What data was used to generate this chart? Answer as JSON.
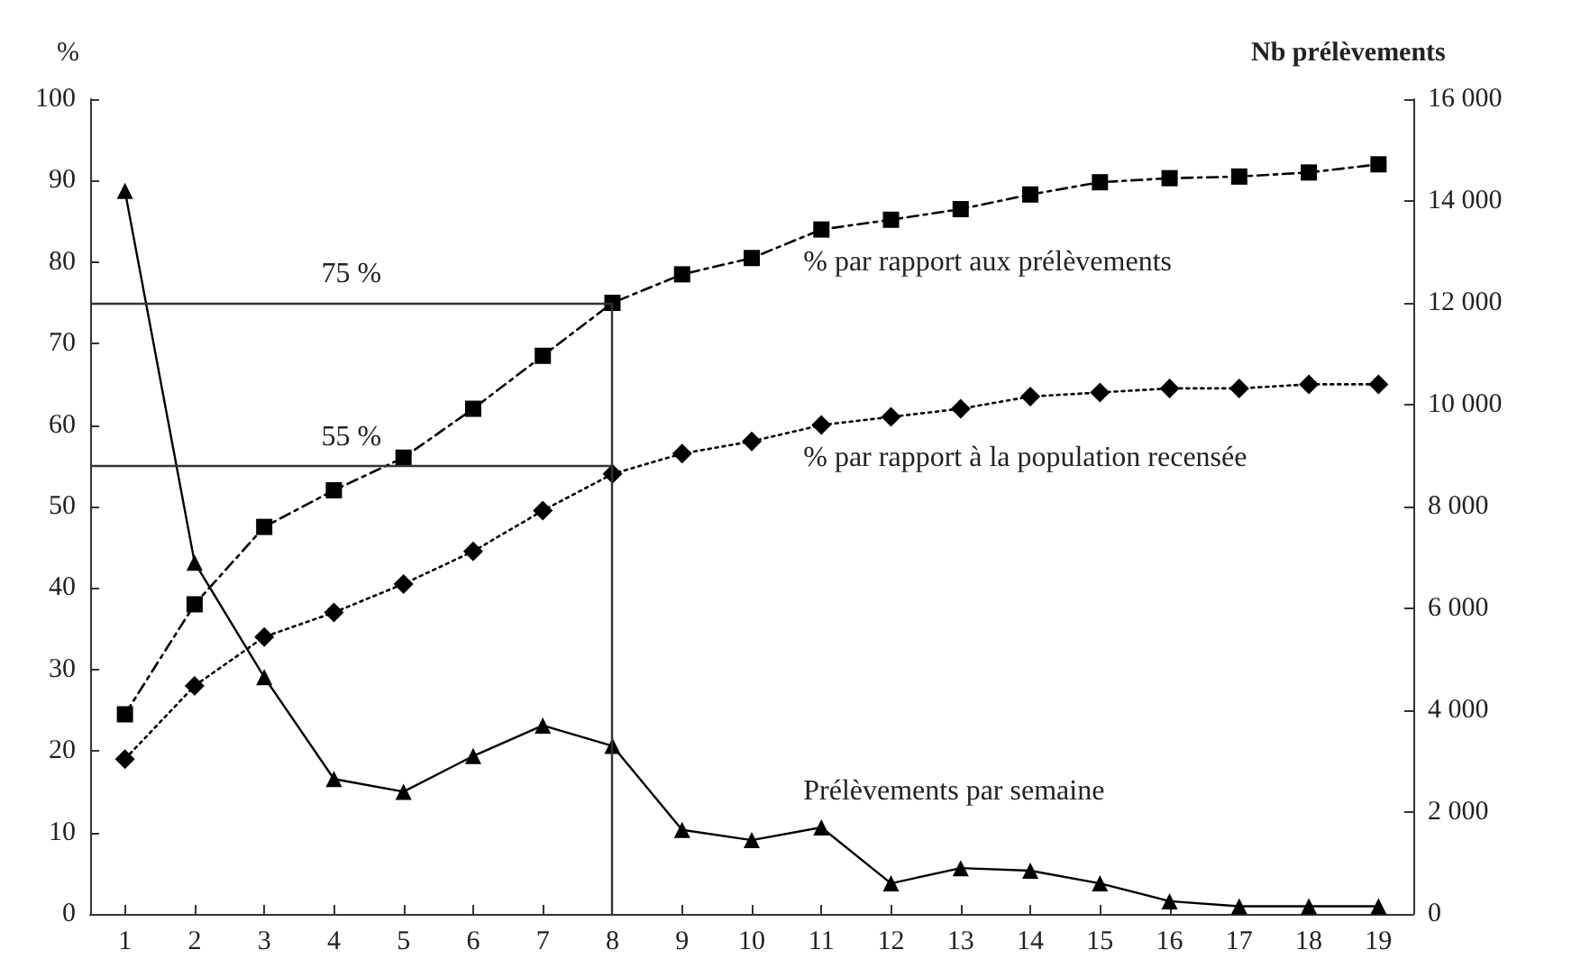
{
  "chart_data": {
    "type": "line",
    "ylabel": "%",
    "y2label": "Nb prélèvements",
    "x": [
      1,
      2,
      3,
      4,
      5,
      6,
      7,
      8,
      9,
      10,
      11,
      12,
      13,
      14,
      15,
      16,
      17,
      18,
      19
    ],
    "xlim": [
      0.5,
      19.5
    ],
    "xticks": [
      1,
      2,
      3,
      4,
      5,
      6,
      7,
      8,
      9,
      10,
      11,
      12,
      13,
      14,
      15,
      16,
      17,
      18,
      19
    ],
    "series": [
      {
        "name": "% par rapport aux prélèvements",
        "color": "#000000",
        "marker": "square",
        "line_style": "dashed",
        "values": [
          24.5,
          38,
          47.5,
          52,
          56,
          62,
          68.5,
          75,
          78.5,
          80.5,
          84,
          85.2,
          86.5,
          88.3,
          89.8,
          90.3,
          90.5,
          91,
          92
        ]
      },
      {
        "name": "% par rapport à la population recensée",
        "color": "#000000",
        "marker": "diamond",
        "line_style": "dotted",
        "values": [
          19,
          28,
          34,
          37,
          40.5,
          44.5,
          49.5,
          54,
          56.5,
          58,
          60,
          61,
          62,
          63.5,
          64,
          64.5,
          64.5,
          65,
          65
        ]
      },
      {
        "name": "Prélèvements par semaine",
        "color": "#000000",
        "marker": "triangle",
        "line_style": "solid",
        "axis": "y2",
        "values": [
          14200,
          6900,
          4650,
          2650,
          2400,
          3100,
          3700,
          3300,
          1650,
          1450,
          1700,
          600,
          900,
          850,
          600,
          250,
          150,
          150,
          150
        ]
      }
    ],
    "ylim": [
      0,
      100
    ],
    "yticks": [
      0,
      10,
      20,
      30,
      40,
      50,
      60,
      70,
      80,
      90,
      100
    ],
    "y2lim": [
      0,
      16000
    ],
    "y2ticks": [
      0,
      2000,
      4000,
      6000,
      8000,
      10000,
      12000,
      14000,
      16000
    ],
    "ref_lines": [
      {
        "axis": "y",
        "value": 75,
        "label": "75 %"
      },
      {
        "axis": "y",
        "value": 55,
        "label": "55 %"
      },
      {
        "axis": "x",
        "value": 8,
        "label": null
      }
    ],
    "grid": false,
    "legend": false
  }
}
